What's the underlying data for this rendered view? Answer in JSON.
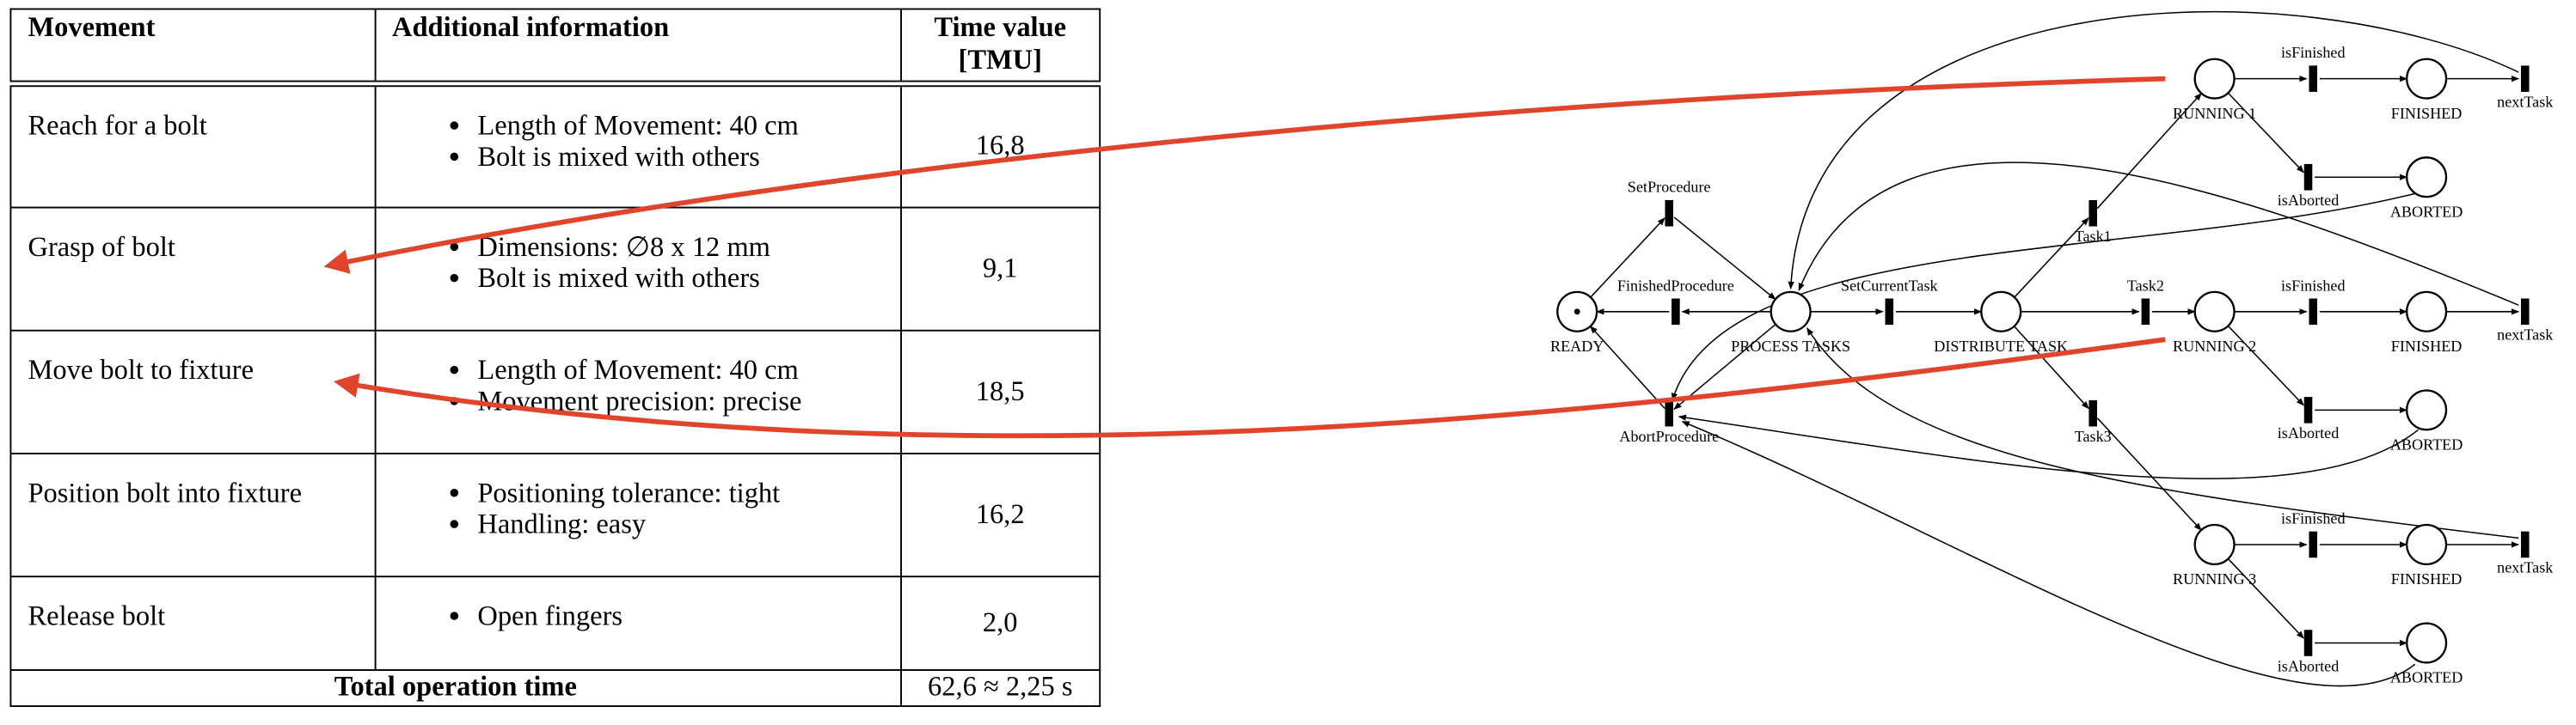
{
  "table": {
    "headers": [
      "Movement",
      "Additional information",
      "Time value [TMU]"
    ],
    "rows": [
      {
        "movement": "Reach for a bolt",
        "info": [
          "Length of Movement: 40 cm",
          "Bolt is mixed with others"
        ],
        "time": "16,8"
      },
      {
        "movement": "Grasp of bolt",
        "info": [
          "Dimensions: ∅8 x 12 mm",
          "Bolt is mixed with others"
        ],
        "time": "9,1"
      },
      {
        "movement": "Move bolt to fixture",
        "info": [
          "Length of Movement: 40 cm",
          "Movement precision: precise"
        ],
        "time": "18,5"
      },
      {
        "movement": "Position bolt into fixture",
        "info": [
          "Positioning tolerance: tight",
          "Handling: easy"
        ],
        "time": "16,2"
      },
      {
        "movement": "Release bolt",
        "info": [
          "Open fingers"
        ],
        "time": "2,0"
      }
    ],
    "total": {
      "label": "Total operation time",
      "value": "62,6 ≈ 2,25 s"
    }
  },
  "net": {
    "places": [
      "READY",
      "PROCESS TASKS",
      "DISTRIBUTE TASK",
      "RUNNING 1",
      "FINISHED",
      "ABORTED",
      "RUNNING 2",
      "FINISHED",
      "ABORTED",
      "RUNNING 3",
      "FINISHED",
      "ABORTED"
    ],
    "transitions": [
      "SetProcedure",
      "FinishedProcedure",
      "AbortProcedure",
      "SetCurrentTask",
      "Task1",
      "Task2",
      "Task3",
      "isFinished",
      "isAborted",
      "nextTask",
      "isFinished",
      "isAborted",
      "nextTask",
      "isFinished",
      "isAborted",
      "nextTask"
    ]
  }
}
